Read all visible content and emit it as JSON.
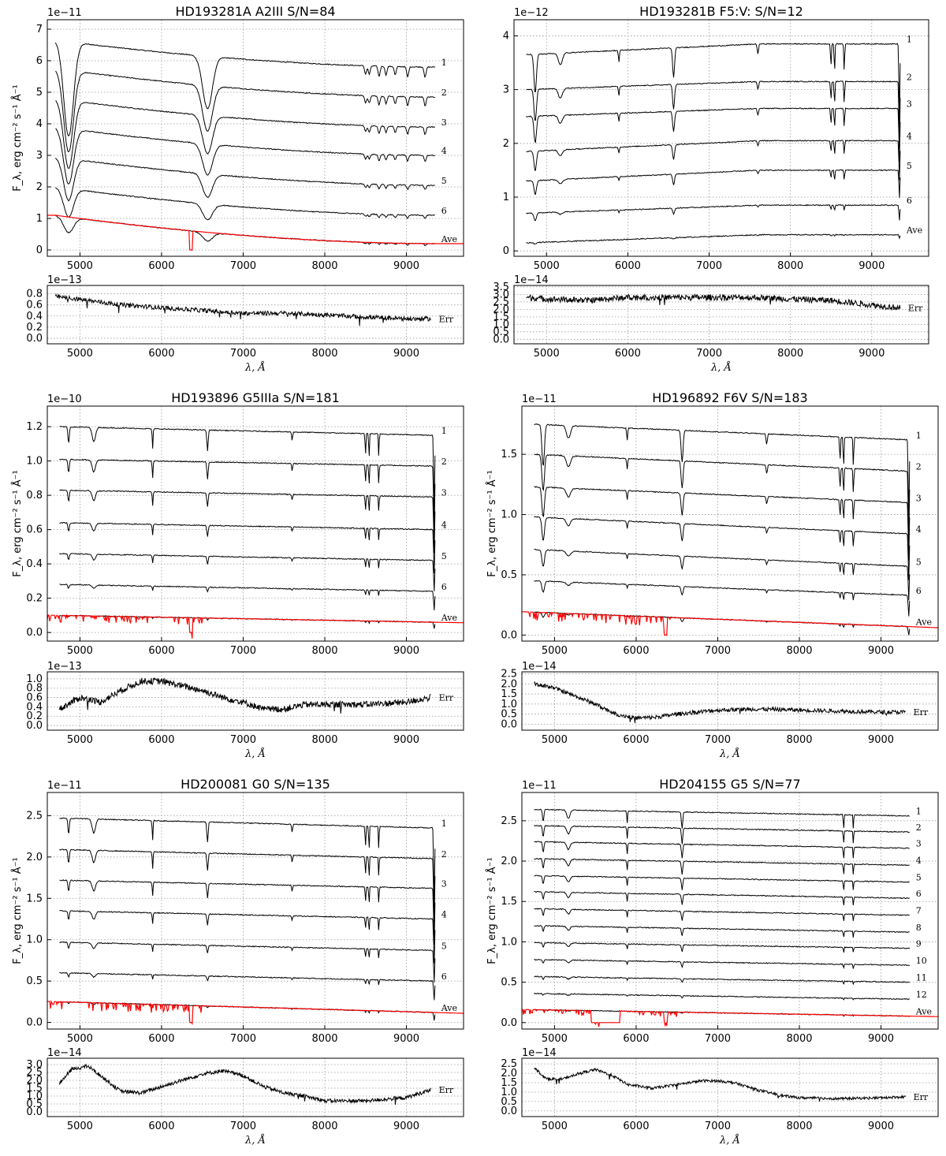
{
  "chart_data": [
    {
      "type": "line",
      "title": "HD193281A  A2III  S/N=84",
      "ylabel": "F_λ, erg cm⁻² s⁻¹ Å⁻¹",
      "y_multiplier": "1e−11",
      "xlim": [
        4600,
        9700
      ],
      "ylim": [
        -0.2,
        7.3
      ],
      "x_ticks": [
        5000,
        6000,
        7000,
        8000,
        9000
      ],
      "y_ticks": [
        0,
        1,
        2,
        3,
        4,
        5,
        6,
        7
      ],
      "grid": true,
      "profile": "A",
      "x_start": 4700,
      "x_end": 9350,
      "offsets": [
        {
          "label": "1",
          "start": 6.65,
          "end": 5.8
        },
        {
          "label": "2",
          "start": 5.75,
          "end": 4.85
        },
        {
          "label": "3",
          "start": 4.8,
          "end": 3.9
        },
        {
          "label": "4",
          "start": 3.9,
          "end": 3.0
        },
        {
          "label": "5",
          "start": 2.95,
          "end": 2.05
        },
        {
          "label": "6",
          "start": 2.0,
          "end": 1.1
        },
        {
          "label": "Ave",
          "start": 1.1,
          "end": 0.2,
          "red": true
        }
      ],
      "err": {
        "label": "Err",
        "xlabel": "λ, Å",
        "y_multiplier": "1e−13",
        "ylim": [
          -0.1,
          0.95
        ],
        "y_ticks": [
          0.0,
          0.2,
          0.4,
          0.6,
          0.8
        ],
        "tick_labels": [
          "0.0",
          "0.2",
          "0.4",
          "0.6",
          "0.8"
        ],
        "x": [
          4700,
          5000,
          5500,
          6000,
          6500,
          7000,
          7500,
          8000,
          8500,
          9000,
          9300
        ],
        "y": [
          0.75,
          0.7,
          0.6,
          0.55,
          0.5,
          0.45,
          0.45,
          0.42,
          0.38,
          0.35,
          0.35
        ],
        "noise": 0.04
      }
    },
    {
      "type": "line",
      "title": "HD193281B  F5:V:  S/N=12",
      "ylabel": "",
      "y_multiplier": "1e−12",
      "xlim": [
        4600,
        9700
      ],
      "ylim": [
        -0.1,
        4.3
      ],
      "x_ticks": [
        5000,
        6000,
        7000,
        8000,
        9000
      ],
      "y_ticks": [
        0,
        1,
        2,
        3,
        4
      ],
      "grid": true,
      "profile": "F",
      "x_start": 4750,
      "x_end": 9350,
      "offsets": [
        {
          "label": "1",
          "start": 3.65,
          "end": 3.85
        },
        {
          "label": "2",
          "start": 3.0,
          "end": 3.15
        },
        {
          "label": "3",
          "start": 2.5,
          "end": 2.65
        },
        {
          "label": "4",
          "start": 1.85,
          "end": 2.05
        },
        {
          "label": "5",
          "start": 1.3,
          "end": 1.5
        },
        {
          "label": "6",
          "start": 0.7,
          "end": 0.85
        },
        {
          "label": "Ave",
          "start": 0.15,
          "end": 0.3
        }
      ],
      "err": {
        "label": "Err",
        "xlabel": "λ, Å",
        "y_multiplier": "1e−14",
        "ylim": [
          -0.3,
          3.6
        ],
        "y_ticks": [
          0.0,
          0.5,
          1.0,
          1.5,
          2.0,
          2.5,
          3.0,
          3.5
        ],
        "tick_labels": [
          "0.0",
          "0.5",
          "1.0",
          "1.5",
          "2.0",
          "2.5",
          "3.0",
          "3.5"
        ],
        "x": [
          4750,
          5000,
          5500,
          6000,
          6500,
          7000,
          7500,
          8000,
          8500,
          9000,
          9350
        ],
        "y": [
          2.8,
          2.7,
          2.6,
          2.8,
          2.8,
          2.8,
          2.8,
          2.7,
          2.6,
          2.3,
          2.1
        ],
        "noise": 0.2
      }
    },
    {
      "type": "line",
      "title": "HD193896  G5IIIa  S/N=181",
      "ylabel": "F_λ, erg cm⁻² s⁻¹ Å⁻¹",
      "y_multiplier": "1e−10",
      "xlim": [
        4600,
        9700
      ],
      "ylim": [
        -0.05,
        1.32
      ],
      "x_ticks": [
        5000,
        6000,
        7000,
        8000,
        9000
      ],
      "y_ticks": [
        0.0,
        0.2,
        0.4,
        0.6,
        0.8,
        1.0,
        1.2
      ],
      "grid": true,
      "profile": "G",
      "x_start": 4750,
      "x_end": 9350,
      "offsets": [
        {
          "label": "1",
          "start": 1.2,
          "end": 1.15
        },
        {
          "label": "2",
          "start": 1.01,
          "end": 0.97
        },
        {
          "label": "3",
          "start": 0.83,
          "end": 0.79
        },
        {
          "label": "4",
          "start": 0.64,
          "end": 0.6
        },
        {
          "label": "5",
          "start": 0.46,
          "end": 0.42
        },
        {
          "label": "6",
          "start": 0.28,
          "end": 0.24
        },
        {
          "label": "Ave",
          "start": 0.1,
          "end": 0.06,
          "red": true
        }
      ],
      "err": {
        "label": "Err",
        "xlabel": "λ, Å",
        "y_multiplier": "1e−13",
        "ylim": [
          -0.1,
          1.15
        ],
        "y_ticks": [
          0.0,
          0.2,
          0.4,
          0.6,
          0.8,
          1.0
        ],
        "tick_labels": [
          "0.0",
          "0.2",
          "0.4",
          "0.6",
          "0.8",
          "1.0"
        ],
        "x": [
          4750,
          5000,
          5250,
          5500,
          5750,
          6000,
          6250,
          6500,
          6750,
          7000,
          7250,
          7500,
          7750,
          8000,
          8500,
          9000,
          9300
        ],
        "y": [
          0.35,
          0.6,
          0.5,
          0.75,
          0.95,
          0.95,
          0.85,
          0.75,
          0.6,
          0.5,
          0.35,
          0.35,
          0.45,
          0.45,
          0.45,
          0.5,
          0.6
        ],
        "noise": 0.07
      }
    },
    {
      "type": "line",
      "title": "HD196892  F6V  S/N=183",
      "ylabel": "F_λ, erg cm⁻² s⁻¹ Å⁻¹",
      "y_multiplier": "1e−11",
      "xlim": [
        4600,
        9700
      ],
      "ylim": [
        -0.05,
        1.9
      ],
      "x_ticks": [
        5000,
        6000,
        7000,
        8000,
        9000
      ],
      "y_ticks": [
        0.0,
        0.5,
        1.0,
        1.5
      ],
      "grid": true,
      "profile": "F",
      "x_start": 4750,
      "x_end": 9350,
      "offsets": [
        {
          "label": "1",
          "start": 1.75,
          "end": 1.62
        },
        {
          "label": "2",
          "start": 1.5,
          "end": 1.36
        },
        {
          "label": "3",
          "start": 1.23,
          "end": 1.1
        },
        {
          "label": "4",
          "start": 0.98,
          "end": 0.84
        },
        {
          "label": "5",
          "start": 0.71,
          "end": 0.57
        },
        {
          "label": "6",
          "start": 0.45,
          "end": 0.33
        },
        {
          "label": "Ave",
          "start": 0.19,
          "end": 0.07,
          "red": true
        }
      ],
      "err": {
        "label": "Err",
        "xlabel": "λ, Å",
        "y_multiplier": "1e−14",
        "ylim": [
          -0.3,
          2.6
        ],
        "y_ticks": [
          0.0,
          0.5,
          1.0,
          1.5,
          2.0,
          2.5
        ],
        "tick_labels": [
          "0.0",
          "0.5",
          "1.0",
          "1.5",
          "2.0",
          "2.5"
        ],
        "x": [
          4750,
          5000,
          5250,
          5500,
          5750,
          6000,
          6250,
          6500,
          7000,
          7500,
          8000,
          8500,
          9000,
          9300
        ],
        "y": [
          2.0,
          1.8,
          1.4,
          1.0,
          0.5,
          0.3,
          0.35,
          0.5,
          0.7,
          0.75,
          0.7,
          0.65,
          0.6,
          0.6
        ],
        "noise": 0.1
      }
    },
    {
      "type": "line",
      "title": "HD200081  G0  S/N=135",
      "ylabel": "F_λ, erg cm⁻² s⁻¹ Å⁻¹",
      "y_multiplier": "1e−11",
      "xlim": [
        4600,
        9700
      ],
      "ylim": [
        -0.08,
        2.78
      ],
      "x_ticks": [
        5000,
        6000,
        7000,
        8000,
        9000
      ],
      "y_ticks": [
        0.0,
        0.5,
        1.0,
        1.5,
        2.0,
        2.5
      ],
      "grid": true,
      "profile": "G",
      "x_start": 4750,
      "x_end": 9350,
      "offsets": [
        {
          "label": "1",
          "start": 2.47,
          "end": 2.35
        },
        {
          "label": "2",
          "start": 2.09,
          "end": 1.98
        },
        {
          "label": "3",
          "start": 1.72,
          "end": 1.62
        },
        {
          "label": "4",
          "start": 1.35,
          "end": 1.25
        },
        {
          "label": "5",
          "start": 0.97,
          "end": 0.87
        },
        {
          "label": "6",
          "start": 0.6,
          "end": 0.5
        },
        {
          "label": "Ave",
          "start": 0.25,
          "end": 0.12,
          "red": true
        }
      ],
      "err": {
        "label": "Err",
        "xlabel": "λ, Å",
        "y_multiplier": "1e−14",
        "ylim": [
          -0.3,
          3.4
        ],
        "y_ticks": [
          0.0,
          0.5,
          1.0,
          1.5,
          2.0,
          2.5,
          3.0
        ],
        "tick_labels": [
          "0.0",
          "0.5",
          "1.0",
          "1.5",
          "2.0",
          "2.5",
          "3.0"
        ],
        "x": [
          4750,
          4900,
          5100,
          5300,
          5500,
          5750,
          6000,
          6250,
          6500,
          6750,
          7000,
          7250,
          7500,
          7750,
          8000,
          8500,
          9000,
          9300
        ],
        "y": [
          1.8,
          2.7,
          2.9,
          2.1,
          1.3,
          1.2,
          1.6,
          2.0,
          2.4,
          2.6,
          2.3,
          1.6,
          1.2,
          1.0,
          0.7,
          0.7,
          0.9,
          1.4
        ],
        "noise": 0.12
      }
    },
    {
      "type": "line",
      "title": "HD204155  G5  S/N=77",
      "ylabel": "F_λ, erg cm⁻² s⁻¹ Å⁻¹",
      "y_multiplier": "1e−11",
      "xlim": [
        4600,
        9700
      ],
      "ylim": [
        -0.08,
        2.85
      ],
      "x_ticks": [
        5000,
        6000,
        7000,
        8000,
        9000
      ],
      "y_ticks": [
        0.0,
        0.5,
        1.0,
        1.5,
        2.0,
        2.5
      ],
      "grid": true,
      "profile": "G5",
      "x_start": 4750,
      "x_end": 9350,
      "offsets": [
        {
          "label": "1",
          "start": 2.64,
          "end": 2.56
        },
        {
          "label": "2",
          "start": 2.44,
          "end": 2.36
        },
        {
          "label": "3",
          "start": 2.24,
          "end": 2.16
        },
        {
          "label": "4",
          "start": 2.03,
          "end": 1.95
        },
        {
          "label": "5",
          "start": 1.82,
          "end": 1.74
        },
        {
          "label": "6",
          "start": 1.62,
          "end": 1.54
        },
        {
          "label": "7",
          "start": 1.41,
          "end": 1.33
        },
        {
          "label": "8",
          "start": 1.2,
          "end": 1.12
        },
        {
          "label": "9",
          "start": 0.99,
          "end": 0.92
        },
        {
          "label": "10",
          "start": 0.78,
          "end": 0.71
        },
        {
          "label": "11",
          "start": 0.57,
          "end": 0.5
        },
        {
          "label": "12",
          "start": 0.36,
          "end": 0.29
        },
        {
          "label": "Ave",
          "start": 0.16,
          "end": 0.08,
          "red": true,
          "gap": true
        }
      ],
      "err": {
        "label": "Err",
        "xlabel": "λ, Å",
        "y_multiplier": "1e−14",
        "ylim": [
          -0.3,
          2.8
        ],
        "y_ticks": [
          0.0,
          0.5,
          1.0,
          1.5,
          2.0,
          2.5
        ],
        "tick_labels": [
          "0.0",
          "0.5",
          "1.0",
          "1.5",
          "2.0",
          "2.5"
        ],
        "x": [
          4750,
          4900,
          5100,
          5300,
          5500,
          5700,
          5900,
          6200,
          6500,
          6800,
          7000,
          7200,
          7500,
          7800,
          8000,
          8500,
          9000,
          9300
        ],
        "y": [
          2.3,
          1.7,
          1.7,
          2.0,
          2.2,
          1.9,
          1.4,
          1.2,
          1.4,
          1.6,
          1.6,
          1.5,
          1.1,
          0.8,
          0.7,
          0.65,
          0.7,
          0.75
        ],
        "noise": 0.07
      }
    }
  ]
}
